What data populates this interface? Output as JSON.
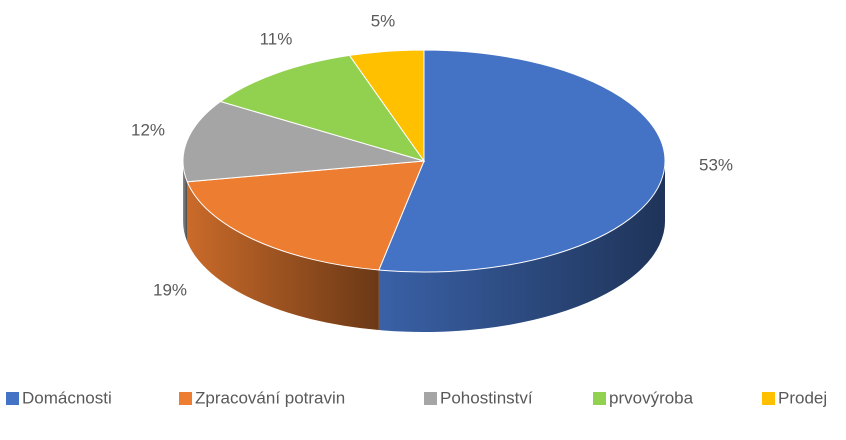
{
  "chart_data": {
    "type": "pie",
    "categories": [
      "Domácnosti",
      "Zpracování potravin",
      "Pohostinství",
      "prvovýroba",
      "Prodej"
    ],
    "values": [
      53,
      19,
      12,
      11,
      5
    ],
    "value_labels": [
      "53%",
      "19%",
      "12%",
      "11%",
      "5%"
    ],
    "colors": [
      "#4472c4",
      "#ed7d31",
      "#a5a5a5",
      "#92d050",
      "#ffc000"
    ],
    "legend": "bottom"
  }
}
